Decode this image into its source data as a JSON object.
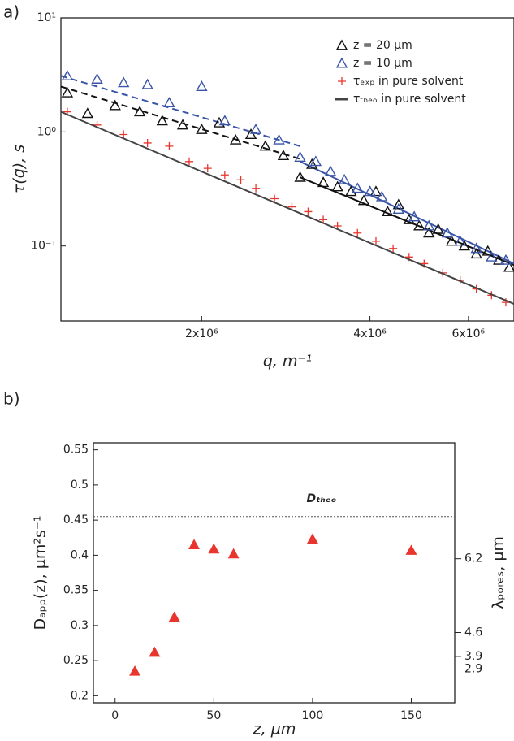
{
  "chart_data": [
    {
      "type": "scatter",
      "panel_label": "a)",
      "x_label": "q, m⁻¹",
      "y_label": "τ(q), s",
      "xlog": true,
      "ylog": true,
      "xlim": [
        1120000.0,
        7240000.0
      ],
      "ylim": [
        0.022,
        10
      ],
      "xticks": [
        {
          "value": 2000000.0,
          "label": "2x10⁶"
        },
        {
          "value": 4000000.0,
          "label": "4x10⁶"
        },
        {
          "value": 6000000.0,
          "label": "6x10⁶"
        }
      ],
      "yticks": [
        {
          "value": 0.1,
          "label": "10⁻¹"
        },
        {
          "value": 1,
          "label": "10⁰"
        },
        {
          "value": 10,
          "label": "10¹"
        }
      ],
      "legend": "upper right",
      "series": [
        {
          "name": "z = 20 µm",
          "color": "#111111",
          "marker": "triangle",
          "x": [
            1150000.0,
            1250000.0,
            1400000.0,
            1550000.0,
            1700000.0,
            1850000.0,
            2000000.0,
            2150000.0,
            2300000.0,
            2450000.0,
            2600000.0,
            2800000.0,
            3000000.0,
            3150000.0,
            3300000.0,
            3500000.0,
            3700000.0,
            3900000.0,
            4100000.0,
            4300000.0,
            4500000.0,
            4700000.0,
            4900000.0,
            5100000.0,
            5300000.0,
            5600000.0,
            5900000.0,
            6200000.0,
            6500000.0,
            6800000.0,
            7100000.0
          ],
          "values": [
            2.2,
            1.45,
            1.7,
            1.5,
            1.25,
            1.15,
            1.05,
            1.2,
            0.85,
            0.95,
            0.75,
            0.62,
            0.4,
            0.52,
            0.36,
            0.33,
            0.3,
            0.25,
            0.3,
            0.2,
            0.23,
            0.17,
            0.15,
            0.13,
            0.14,
            0.11,
            0.1,
            0.085,
            0.09,
            0.075,
            0.065
          ]
        },
        {
          "name": "z = 10 µm",
          "color": "#3a55a8",
          "marker": "triangle",
          "x": [
            1150000.0,
            1300000.0,
            1450000.0,
            1600000.0,
            1750000.0,
            2000000.0,
            2200000.0,
            2500000.0,
            2750000.0,
            3000000.0,
            3200000.0,
            3400000.0,
            3600000.0,
            3800000.0,
            4000000.0,
            4200000.0,
            4500000.0,
            4800000.0,
            5100000.0,
            5500000.0,
            5800000.0,
            6200000.0,
            6600000.0,
            7000000.0
          ],
          "values": [
            3.1,
            2.9,
            2.7,
            2.6,
            1.8,
            2.5,
            1.25,
            1.05,
            0.85,
            0.6,
            0.55,
            0.45,
            0.38,
            0.32,
            0.3,
            0.27,
            0.21,
            0.18,
            0.15,
            0.13,
            0.11,
            0.095,
            0.08,
            0.075
          ]
        },
        {
          "name": "τₑₓₚ in pure solvent",
          "color": "#e8362e",
          "marker": "plus",
          "x": [
            1150000.0,
            1300000.0,
            1450000.0,
            1600000.0,
            1750000.0,
            1900000.0,
            2050000.0,
            2200000.0,
            2350000.0,
            2500000.0,
            2700000.0,
            2900000.0,
            3100000.0,
            3300000.0,
            3500000.0,
            3800000.0,
            4100000.0,
            4400000.0,
            4700000.0,
            5000000.0,
            5400000.0,
            5800000.0,
            6200000.0,
            6600000.0,
            7000000.0
          ],
          "values": [
            1.5,
            1.15,
            0.95,
            0.8,
            0.75,
            0.55,
            0.48,
            0.42,
            0.38,
            0.32,
            0.26,
            0.22,
            0.2,
            0.17,
            0.15,
            0.13,
            0.11,
            0.095,
            0.08,
            0.07,
            0.058,
            0.05,
            0.042,
            0.037,
            0.032
          ]
        },
        {
          "name": "τₜₕₑₒ in pure solvent",
          "color": "#444444",
          "marker": "line",
          "x": [
            1120000.0,
            7240000.0
          ],
          "values": [
            1.5,
            0.031
          ]
        }
      ],
      "fits": [
        {
          "color": "#111111",
          "dash": true,
          "x": [
            1120000.0,
            3000000.0
          ],
          "values": [
            2.5,
            0.58
          ]
        },
        {
          "color": "#111111",
          "dash": false,
          "x": [
            3000000.0,
            7240000.0
          ],
          "values": [
            0.4,
            0.068
          ]
        },
        {
          "color": "#3a55a8",
          "dash": true,
          "x": [
            1120000.0,
            3000000.0
          ],
          "values": [
            3.1,
            0.75
          ]
        },
        {
          "color": "#3a55a8",
          "dash": false,
          "x": [
            3000000.0,
            7240000.0
          ],
          "values": [
            0.55,
            0.07
          ]
        }
      ]
    },
    {
      "type": "scatter",
      "panel_label": "b)",
      "x_label": "z, µm",
      "y_label": "Dₐₚₚ(z), µm²s⁻¹",
      "y2_label": "λₚₒᵣₑₛ, µm",
      "xlim": [
        -11,
        172
      ],
      "ylim": [
        0.19,
        0.56
      ],
      "xticks": [
        0,
        50,
        100,
        150
      ],
      "yticks": [
        0.2,
        0.25,
        0.3,
        0.35,
        0.4,
        0.45,
        0.5,
        0.55
      ],
      "y2ticks": [
        2.9,
        3.9,
        4.6,
        6.2
      ],
      "y2tick_at": [
        0.238,
        0.256,
        0.29,
        0.395
      ],
      "reference_line": {
        "value": 0.455,
        "label": "Dₜₕₑₒ",
        "color": "#999999"
      },
      "series": [
        {
          "color": "#e8362e",
          "marker": "filled-triangle",
          "x": [
            10,
            20,
            30,
            40,
            50,
            60,
            100,
            150
          ],
          "values": [
            0.235,
            0.262,
            0.312,
            0.415,
            0.409,
            0.402,
            0.423,
            0.407
          ]
        }
      ]
    }
  ]
}
